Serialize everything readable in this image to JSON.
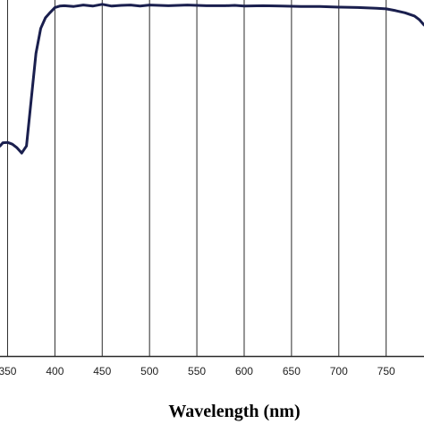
{
  "chart_data": {
    "type": "line",
    "title": "",
    "xlabel": "Wavelength (nm)",
    "ylabel": "",
    "xlim": [
      342,
      790
    ],
    "ylim": [
      0,
      100
    ],
    "grid": {
      "vertical": true,
      "horizontal": false
    },
    "legend": "none",
    "x_ticks": [
      350,
      400,
      450,
      500,
      550,
      600,
      650,
      700,
      750
    ],
    "x_tick_labels": [
      "350",
      "400",
      "450",
      "500",
      "550",
      "600",
      "650",
      "700",
      "750"
    ],
    "series": [
      {
        "color": "#1a1f4e",
        "x": [
          342,
          345,
          350,
          355,
          360,
          365,
          370,
          375,
          380,
          385,
          390,
          395,
          400,
          405,
          410,
          420,
          430,
          440,
          450,
          460,
          470,
          480,
          490,
          500,
          520,
          540,
          560,
          580,
          590,
          600,
          620,
          640,
          660,
          680,
          700,
          720,
          740,
          750,
          760,
          770,
          780,
          785,
          790
        ],
        "y": [
          59.0,
          59.9,
          60.0,
          59.5,
          58.5,
          57.0,
          59.0,
          72.0,
          85.0,
          92.0,
          95.0,
          96.5,
          97.9,
          98.3,
          98.4,
          98.2,
          98.6,
          98.3,
          98.8,
          98.3,
          98.5,
          98.6,
          98.3,
          98.6,
          98.4,
          98.6,
          98.4,
          98.4,
          98.5,
          98.3,
          98.4,
          98.3,
          98.2,
          98.2,
          98.0,
          97.9,
          97.7,
          97.5,
          97.0,
          96.4,
          95.5,
          94.5,
          93.0
        ]
      }
    ]
  }
}
